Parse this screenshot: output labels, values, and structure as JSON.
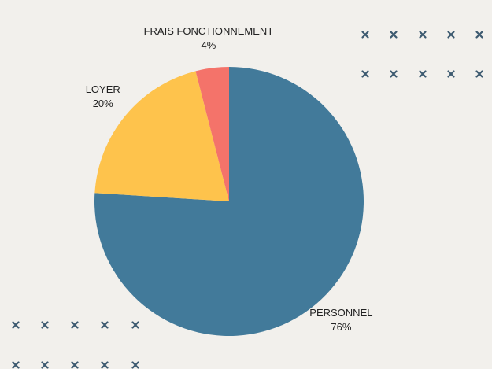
{
  "chart_data": {
    "type": "pie",
    "categories": [
      "PERSONNEL",
      "LOYER",
      "FRAIS FONCTIONNEMENT"
    ],
    "values": [
      76,
      20,
      4
    ],
    "value_labels": [
      "76%",
      "20%",
      "4%"
    ],
    "colors": [
      "#427a9a",
      "#fec34c",
      "#f4736a"
    ]
  }
}
